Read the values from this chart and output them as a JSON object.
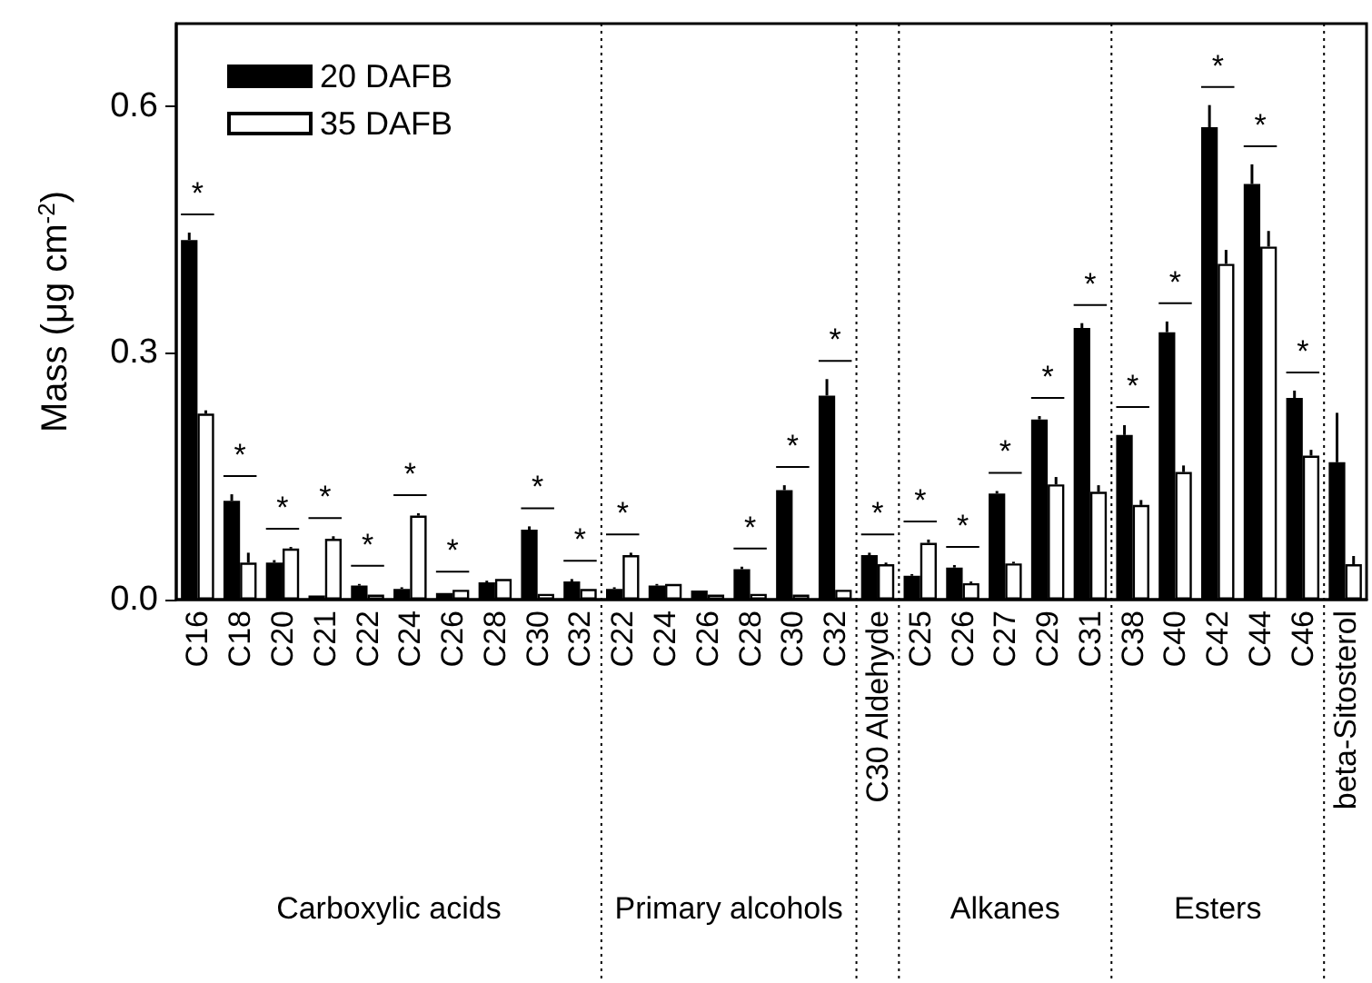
{
  "chart_data": {
    "type": "bar",
    "ylabel": "Mass (μg cm$^{-2}$)",
    "legend": "top left",
    "categories": [
      "C16",
      "C18",
      "C20",
      "C21",
      "C22",
      "C24",
      "C26",
      "C28",
      "C30",
      "C32",
      "C22",
      "C24",
      "C26",
      "C28",
      "C30",
      "C32",
      "C30 Aldehyde",
      "C25",
      "C26",
      "C27",
      "C29",
      "C31",
      "C38",
      "C40",
      "C42",
      "C44",
      "C46",
      "beta-Sitosterol"
    ],
    "ylim": [
      0,
      0.7
    ],
    "yticks": [
      {
        "value": 0,
        "label": "0.0"
      },
      {
        "value": 0.3,
        "label": "0.3"
      },
      {
        "value": 0.6,
        "label": "0.6"
      }
    ],
    "series": [
      {
        "name": "20 DAFB",
        "color": "#000000",
        "values": [
          0.437,
          0.12,
          0.045,
          0.005,
          0.017,
          0.013,
          0.008,
          0.021,
          0.085,
          0.022,
          0.013,
          0.017,
          0.011,
          0.037,
          0.133,
          0.248,
          0.054,
          0.029,
          0.039,
          0.129,
          0.219,
          0.33,
          0.2,
          0.325,
          0.574,
          0.505,
          0.245,
          0.167
        ],
        "errors": [
          0.009,
          0.008,
          0.003,
          null,
          0.002,
          0.002,
          null,
          0.002,
          0.004,
          0.003,
          0.002,
          0.002,
          null,
          0.003,
          0.006,
          0.02,
          0.003,
          0.002,
          0.003,
          0.003,
          0.004,
          0.006,
          0.012,
          0.013,
          0.027,
          0.024,
          0.009,
          0.06
        ]
      },
      {
        "name": "35 DAFB",
        "color": "#ffffff",
        "values": [
          0.226,
          0.045,
          0.062,
          0.074,
          0.006,
          0.102,
          0.012,
          0.025,
          0.007,
          0.013,
          0.054,
          0.019,
          0.006,
          0.007,
          0.006,
          0.012,
          0.043,
          0.069,
          0.02,
          0.044,
          0.14,
          0.131,
          0.115,
          0.155,
          0.408,
          0.429,
          0.175,
          0.043
        ],
        "errors": [
          0.004,
          0.012,
          0.002,
          0.003,
          null,
          0.003,
          null,
          null,
          null,
          null,
          0.003,
          null,
          null,
          null,
          null,
          null,
          0.002,
          0.004,
          0.002,
          0.002,
          0.009,
          0.008,
          0.006,
          0.008,
          0.017,
          0.019,
          0.007,
          0.01
        ]
      }
    ],
    "value_labels": [
      "*",
      "*",
      "*",
      "*",
      "*",
      "*",
      "*",
      null,
      "*",
      "*",
      "*",
      null,
      null,
      "*",
      "*",
      "*",
      "*",
      "*",
      "*",
      "*",
      "*",
      "*",
      "*",
      "*",
      "*",
      "*",
      "*",
      null
    ],
    "annotations": [
      "Carboxylic acids",
      "Primary alcohols",
      "Alkanes",
      "Esters"
    ]
  }
}
